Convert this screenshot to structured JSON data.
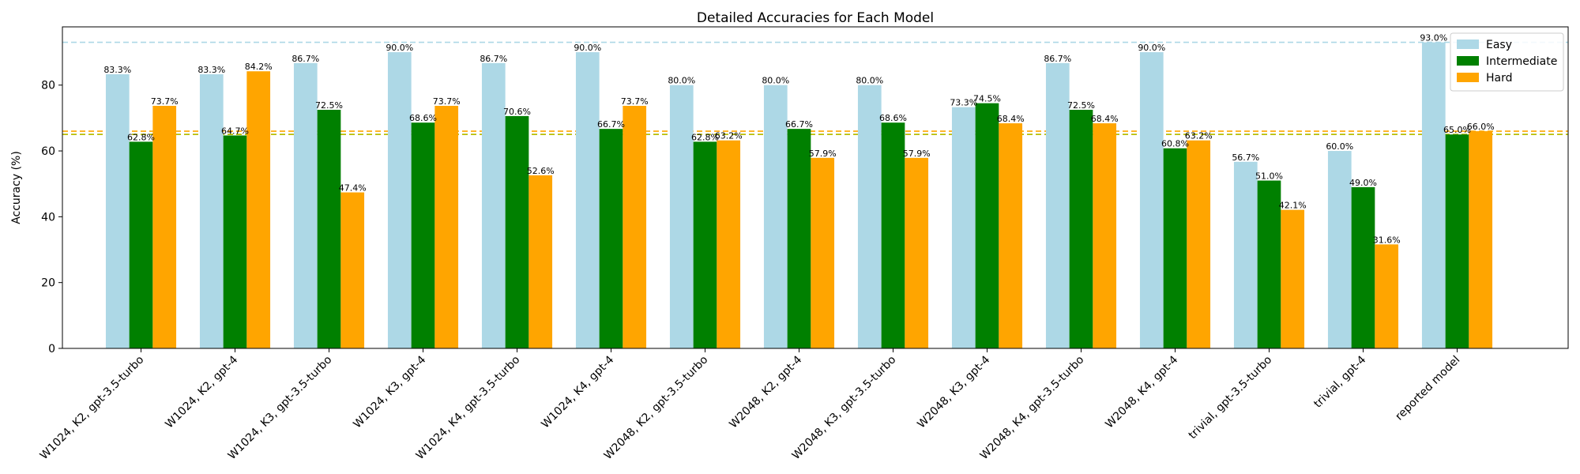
{
  "chart_data": {
    "type": "bar",
    "title": "Detailed Accuracies for Each Model",
    "xlabel": "",
    "ylabel": "Accuracy (%)",
    "ylim": [
      0,
      97.7
    ],
    "yticks": [
      0,
      20,
      40,
      60,
      80
    ],
    "categories": [
      "W1024, K2, gpt-3.5-turbo",
      "W1024, K2, gpt-4",
      "W1024, K3, gpt-3.5-turbo",
      "W1024, K3, gpt-4",
      "W1024, K4, gpt-3.5-turbo",
      "W1024, K4, gpt-4",
      "W2048, K2, gpt-3.5-turbo",
      "W2048, K2, gpt-4",
      "W2048, K3, gpt-3.5-turbo",
      "W2048, K3, gpt-4",
      "W2048, K4, gpt-3.5-turbo",
      "W2048, K4, gpt-4",
      "trivial, gpt-3.5-turbo",
      "trivial, gpt-4",
      "reported model"
    ],
    "series": [
      {
        "name": "Easy",
        "color": "#add8e6",
        "values": [
          83.3,
          83.3,
          86.7,
          90.0,
          86.7,
          90.0,
          80.0,
          80.0,
          80.0,
          73.3,
          86.7,
          90.0,
          56.7,
          60.0,
          93.0
        ]
      },
      {
        "name": "Intermediate",
        "color": "#008000",
        "values": [
          62.8,
          64.7,
          72.5,
          68.6,
          70.6,
          66.7,
          62.8,
          66.7,
          68.6,
          74.5,
          72.5,
          60.8,
          51.0,
          49.0,
          65.0
        ]
      },
      {
        "name": "Hard",
        "color": "#ffa500",
        "values": [
          73.7,
          84.2,
          47.4,
          73.7,
          52.6,
          73.7,
          63.2,
          57.9,
          57.9,
          68.4,
          68.4,
          63.2,
          42.1,
          31.6,
          66.0
        ]
      }
    ],
    "reference_lines": [
      {
        "series": "Easy",
        "value": 93.0,
        "color": "#add8e6",
        "style": "dashed"
      },
      {
        "series": "Intermediate",
        "value": 65.0,
        "color": "#008000",
        "style": "dashed"
      },
      {
        "series": "Hard",
        "value": 66.0,
        "color": "#ffa500",
        "style": "dashed"
      },
      {
        "series": "combined",
        "value": 65.0,
        "color": "#bfbf00",
        "style": "dashed"
      }
    ],
    "legend_position": "top-right",
    "grid": false,
    "value_label_suffix": "%"
  }
}
